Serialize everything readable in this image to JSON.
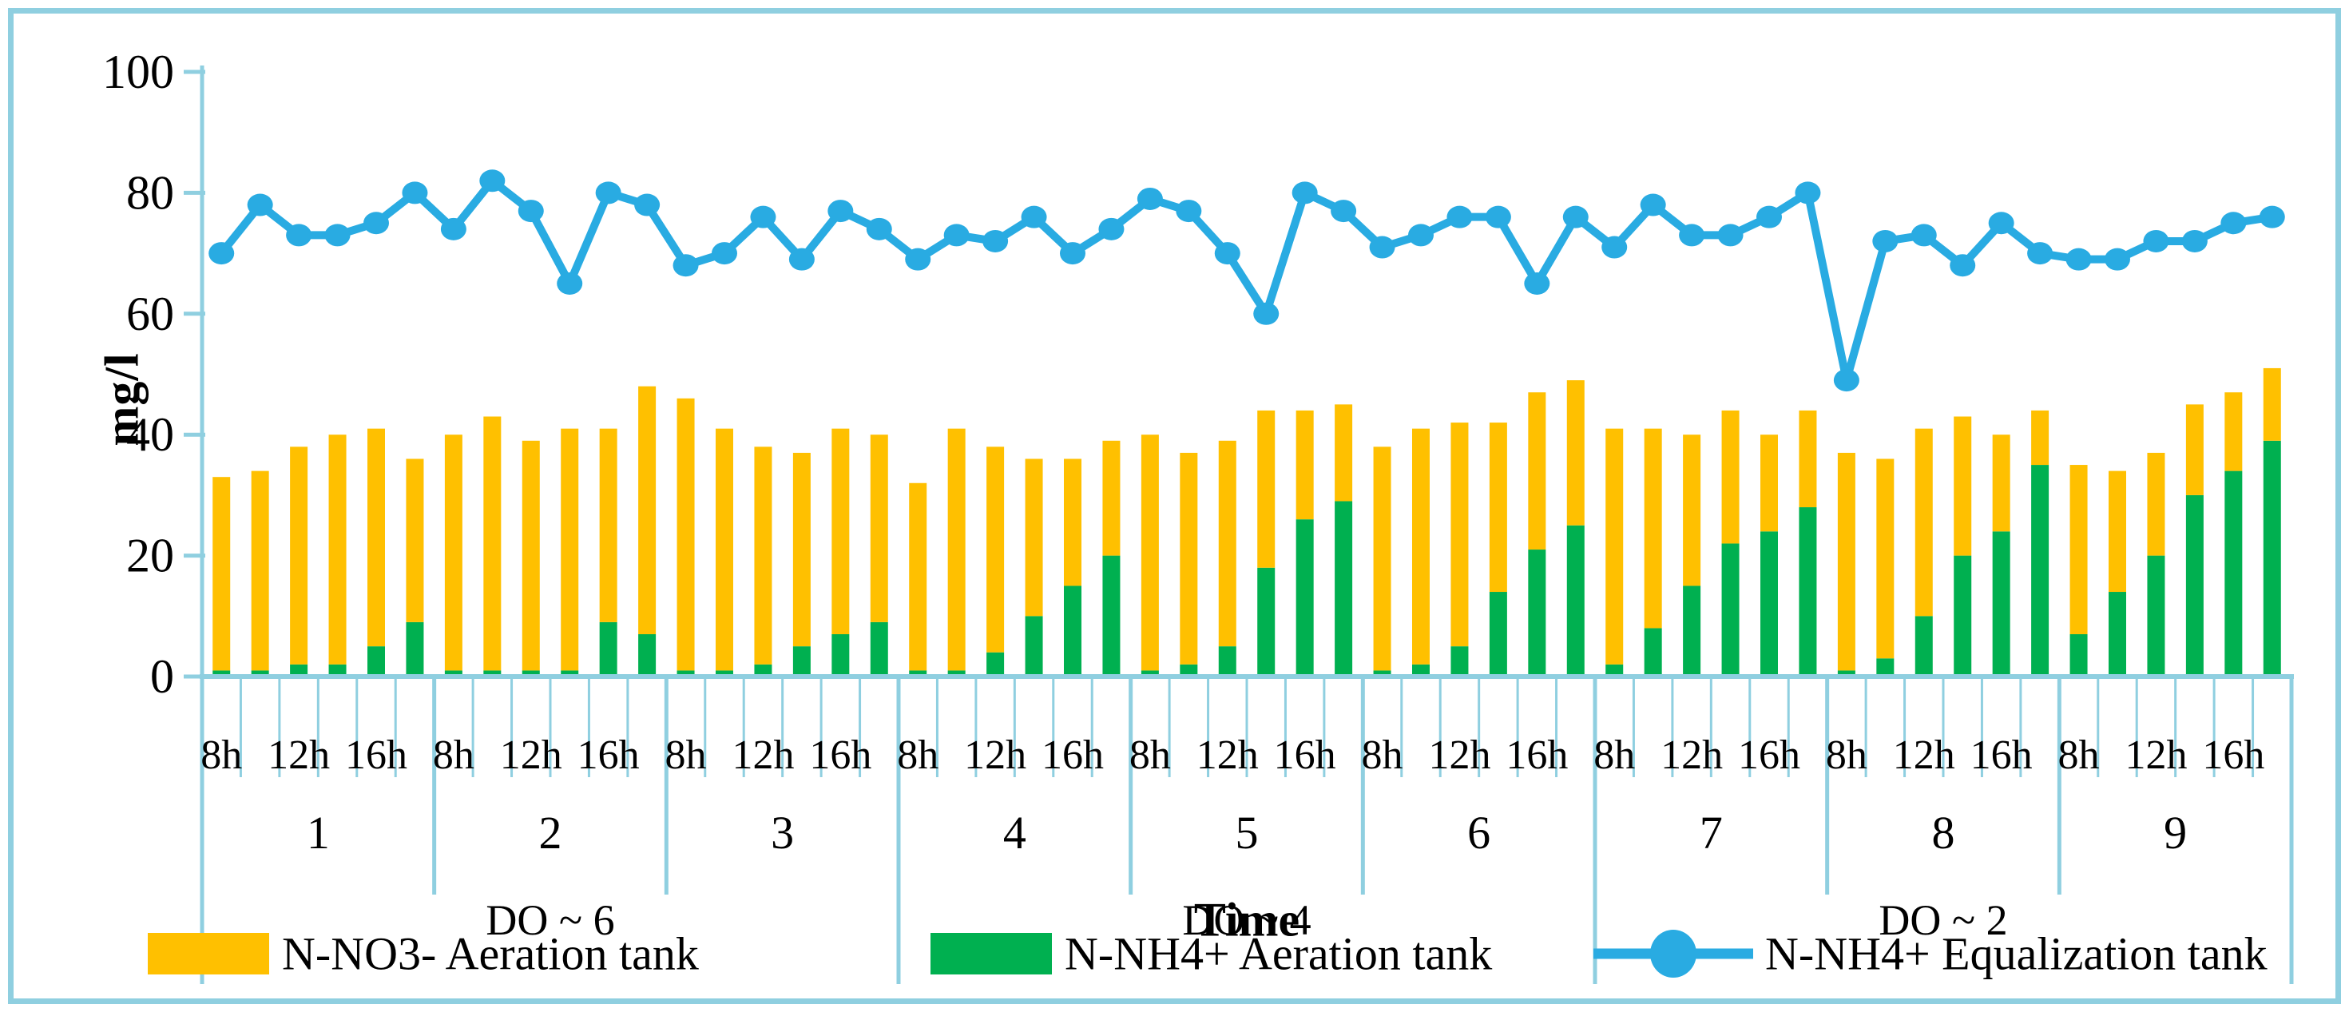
{
  "chart_data": {
    "type": "composite_stacked_bar_line",
    "title": "",
    "ylabel": "mg/l",
    "xlabel": "Time",
    "ylim": [
      0,
      100
    ],
    "yticks": [
      0,
      20,
      40,
      60,
      80,
      100
    ],
    "grid": "off",
    "legend_position": "bottom",
    "days": [
      "1",
      "2",
      "3",
      "4",
      "5",
      "6",
      "7",
      "8",
      "9"
    ],
    "slots_per_day": 6,
    "slot_labels": [
      {
        "slot": 0,
        "label": "8h"
      },
      {
        "slot": 2,
        "label": "12h"
      },
      {
        "slot": 4,
        "label": "16h"
      }
    ],
    "do_groups": [
      {
        "label": "DO ~ 6",
        "from_day": 1,
        "to_day": 3
      },
      {
        "label": "DO ~ 4",
        "from_day": 4,
        "to_day": 6
      },
      {
        "label": "DO ~ 2",
        "from_day": 7,
        "to_day": 9
      }
    ],
    "axis_color": "#8FCFE0",
    "series": [
      {
        "name": "N-NO3- Aeration tank",
        "type": "bar",
        "stack_order": "top",
        "color": "#FFC000",
        "values": [
          32,
          33,
          36,
          38,
          36,
          27,
          39,
          42,
          38,
          40,
          32,
          41,
          45,
          40,
          36,
          32,
          34,
          31,
          31,
          40,
          34,
          26,
          21,
          19,
          39,
          35,
          34,
          26,
          18,
          16,
          37,
          39,
          37,
          28,
          26,
          24,
          39,
          33,
          25,
          22,
          16,
          16,
          36,
          33,
          31,
          23,
          16,
          9,
          28,
          20,
          17,
          15,
          13,
          12
        ]
      },
      {
        "name": "N-NH4+ Aeration tank",
        "type": "bar",
        "stack_order": "bottom",
        "color": "#00B050",
        "values": [
          1,
          1,
          2,
          2,
          5,
          9,
          1,
          1,
          1,
          1,
          9,
          7,
          1,
          1,
          2,
          5,
          7,
          9,
          1,
          1,
          4,
          10,
          15,
          20,
          1,
          2,
          5,
          18,
          26,
          29,
          1,
          2,
          5,
          14,
          21,
          25,
          2,
          8,
          15,
          22,
          24,
          28,
          1,
          3,
          10,
          20,
          24,
          35,
          7,
          14,
          20,
          30,
          34,
          39
        ]
      },
      {
        "name": "N-NH4+ Equalization tank",
        "type": "line",
        "color": "#29ABE2",
        "values": [
          70,
          78,
          73,
          73,
          75,
          80,
          74,
          82,
          77,
          65,
          80,
          78,
          68,
          70,
          76,
          69,
          77,
          74,
          69,
          73,
          72,
          76,
          70,
          74,
          79,
          77,
          70,
          60,
          80,
          77,
          71,
          73,
          76,
          76,
          65,
          76,
          71,
          78,
          73,
          73,
          76,
          80,
          49,
          72,
          73,
          68,
          75,
          70,
          69,
          69,
          72,
          72,
          75,
          76
        ]
      }
    ]
  }
}
